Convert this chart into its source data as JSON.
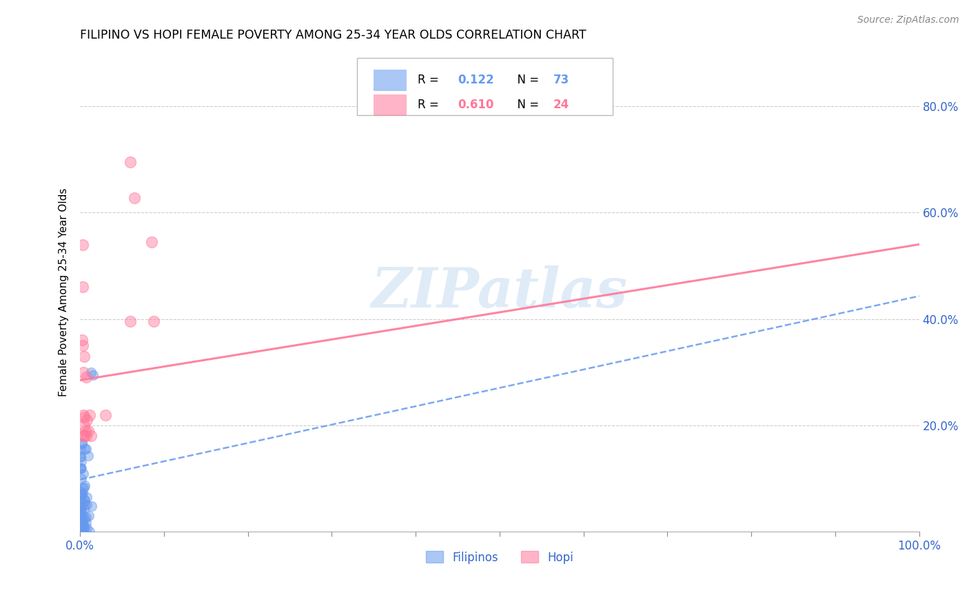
{
  "title": "FILIPINO VS HOPI FEMALE POVERTY AMONG 25-34 YEAR OLDS CORRELATION CHART",
  "source": "Source: ZipAtlas.com",
  "ylabel": "Female Poverty Among 25-34 Year Olds",
  "xlim": [
    0.0,
    1.0
  ],
  "ylim": [
    0.0,
    0.9
  ],
  "xtick_pos": [
    0.0,
    0.1,
    0.2,
    0.3,
    0.4,
    0.5,
    0.6,
    0.7,
    0.8,
    0.9,
    1.0
  ],
  "xticklabels": [
    "0.0%",
    "",
    "",
    "",
    "",
    "",
    "",
    "",
    "",
    "",
    "100.0%"
  ],
  "ytick_positions": [
    0.2,
    0.4,
    0.6,
    0.8
  ],
  "ytick_labels": [
    "20.0%",
    "40.0%",
    "60.0%",
    "80.0%"
  ],
  "filipino_color": "#6699ee",
  "hopi_color": "#ff7799",
  "filipino_R": 0.122,
  "filipino_N": 73,
  "hopi_R": 0.61,
  "hopi_N": 24,
  "fil_line_intercept": 0.098,
  "fil_line_slope": 0.345,
  "hopi_line_intercept": 0.285,
  "hopi_line_slope": 0.255,
  "hopi_x": [
    0.002,
    0.003,
    0.004,
    0.004,
    0.005,
    0.005,
    0.006,
    0.007,
    0.008,
    0.01,
    0.011,
    0.013,
    0.005,
    0.003,
    0.003,
    0.005,
    0.007,
    0.004,
    0.06,
    0.065,
    0.085,
    0.088,
    0.06,
    0.03
  ],
  "hopi_y": [
    0.36,
    0.46,
    0.18,
    0.3,
    0.33,
    0.2,
    0.19,
    0.29,
    0.21,
    0.19,
    0.22,
    0.18,
    0.18,
    0.54,
    0.35,
    0.215,
    0.18,
    0.22,
    0.695,
    0.628,
    0.545,
    0.395,
    0.395,
    0.22
  ]
}
